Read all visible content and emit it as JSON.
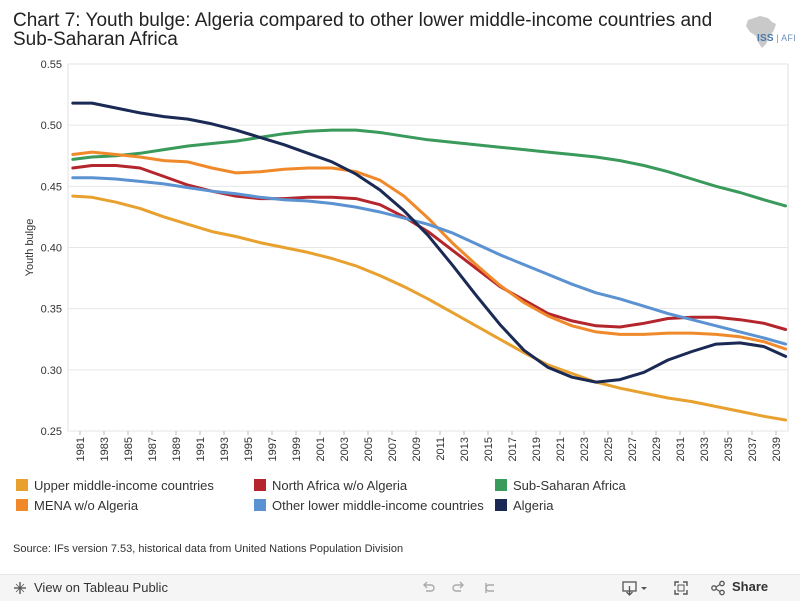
{
  "title": "Chart 7: Youth bulge: Algeria compared to other lower middle-income countries and Sub-Saharan Africa",
  "logo": {
    "text": "ISS",
    "text2": "AFI"
  },
  "source": "Source: IFs version 7.53, historical data from United Nations Population Division",
  "footer": {
    "view_label": "View on Tableau Public",
    "share_label": "Share"
  },
  "colors": {
    "upper": "#e8a12f",
    "north": "#b5262c",
    "ssa": "#3a9a5b",
    "mena": "#f0892a",
    "lower": "#5b92d1",
    "algeria": "#1a2a55"
  },
  "chart_data": {
    "type": "line",
    "title": "Chart 7: Youth bulge: Algeria compared to other lower middle-income countries and Sub-Saharan Africa",
    "xlabel": "",
    "ylabel": "Youth bulge",
    "xlim": [
      1980,
      2040
    ],
    "ylim": [
      0.25,
      0.55
    ],
    "yticks": [
      "0.25",
      "0.30",
      "0.35",
      "0.40",
      "0.45",
      "0.50",
      "0.55"
    ],
    "xticks": [
      "1981",
      "1983",
      "1985",
      "1987",
      "1989",
      "1991",
      "1993",
      "1995",
      "1997",
      "1999",
      "2001",
      "2003",
      "2005",
      "2007",
      "2009",
      "2011",
      "2013",
      "2015",
      "2017",
      "2019",
      "2021",
      "2023",
      "2025",
      "2027",
      "2029",
      "2031",
      "2033",
      "2035",
      "2037",
      "2039"
    ],
    "grid": true,
    "legend_position": "bottom",
    "series": [
      {
        "name": "Upper middle-income countries",
        "color": "#e8a12f",
        "x": [
          1980,
          1982,
          1984,
          1986,
          1988,
          1990,
          1992,
          1994,
          1996,
          1998,
          2000,
          2002,
          2004,
          2006,
          2008,
          2010,
          2012,
          2014,
          2016,
          2018,
          2020,
          2022,
          2024,
          2026,
          2028,
          2030,
          2032,
          2034,
          2036,
          2038,
          2040
        ],
        "values": [
          0.442,
          0.441,
          0.437,
          0.432,
          0.425,
          0.419,
          0.413,
          0.409,
          0.404,
          0.4,
          0.396,
          0.391,
          0.385,
          0.377,
          0.368,
          0.358,
          0.347,
          0.336,
          0.325,
          0.314,
          0.304,
          0.297,
          0.29,
          0.285,
          0.281,
          0.277,
          0.274,
          0.27,
          0.266,
          0.262,
          0.259
        ]
      },
      {
        "name": "North Africa w/o Algeria",
        "color": "#b5262c",
        "x": [
          1980,
          1982,
          1984,
          1986,
          1988,
          1990,
          1992,
          1994,
          1996,
          1998,
          2000,
          2002,
          2004,
          2006,
          2008,
          2010,
          2012,
          2014,
          2016,
          2018,
          2020,
          2022,
          2024,
          2026,
          2028,
          2030,
          2032,
          2034,
          2036,
          2038,
          2040
        ],
        "values": [
          0.465,
          0.467,
          0.467,
          0.465,
          0.458,
          0.451,
          0.446,
          0.442,
          0.44,
          0.44,
          0.441,
          0.441,
          0.44,
          0.435,
          0.425,
          0.413,
          0.398,
          0.383,
          0.368,
          0.357,
          0.346,
          0.34,
          0.336,
          0.335,
          0.338,
          0.342,
          0.343,
          0.343,
          0.341,
          0.338,
          0.333
        ]
      },
      {
        "name": "Sub-Saharan Africa",
        "color": "#3a9a5b",
        "x": [
          1980,
          1982,
          1984,
          1986,
          1988,
          1990,
          1992,
          1994,
          1996,
          1998,
          2000,
          2002,
          2004,
          2006,
          2008,
          2010,
          2012,
          2014,
          2016,
          2018,
          2020,
          2022,
          2024,
          2026,
          2028,
          2030,
          2032,
          2034,
          2036,
          2038,
          2040
        ],
        "values": [
          0.472,
          0.474,
          0.475,
          0.477,
          0.48,
          0.483,
          0.485,
          0.487,
          0.49,
          0.493,
          0.495,
          0.496,
          0.496,
          0.494,
          0.491,
          0.488,
          0.486,
          0.484,
          0.482,
          0.48,
          0.478,
          0.476,
          0.474,
          0.471,
          0.467,
          0.462,
          0.456,
          0.45,
          0.445,
          0.439,
          0.434
        ]
      },
      {
        "name": "MENA w/o Algeria",
        "color": "#f0892a",
        "x": [
          1980,
          1982,
          1984,
          1986,
          1988,
          1990,
          1992,
          1994,
          1996,
          1998,
          2000,
          2002,
          2004,
          2006,
          2008,
          2010,
          2012,
          2014,
          2016,
          2018,
          2020,
          2022,
          2024,
          2026,
          2028,
          2030,
          2032,
          2034,
          2036,
          2038,
          2040
        ],
        "values": [
          0.476,
          0.478,
          0.476,
          0.474,
          0.471,
          0.47,
          0.465,
          0.461,
          0.462,
          0.464,
          0.465,
          0.465,
          0.462,
          0.455,
          0.442,
          0.424,
          0.404,
          0.386,
          0.369,
          0.355,
          0.344,
          0.336,
          0.331,
          0.329,
          0.329,
          0.33,
          0.33,
          0.329,
          0.327,
          0.323,
          0.317
        ]
      },
      {
        "name": "Other lower middle-income countries",
        "color": "#5b92d1",
        "x": [
          1980,
          1982,
          1984,
          1986,
          1988,
          1990,
          1992,
          1994,
          1996,
          1998,
          2000,
          2002,
          2004,
          2006,
          2008,
          2010,
          2012,
          2014,
          2016,
          2018,
          2020,
          2022,
          2024,
          2026,
          2028,
          2030,
          2032,
          2034,
          2036,
          2038,
          2040
        ],
        "values": [
          0.457,
          0.457,
          0.456,
          0.454,
          0.452,
          0.449,
          0.446,
          0.444,
          0.441,
          0.439,
          0.438,
          0.436,
          0.433,
          0.429,
          0.424,
          0.419,
          0.412,
          0.403,
          0.394,
          0.386,
          0.378,
          0.37,
          0.363,
          0.358,
          0.352,
          0.346,
          0.341,
          0.336,
          0.331,
          0.326,
          0.321
        ]
      },
      {
        "name": "Algeria",
        "color": "#1a2a55",
        "x": [
          1980,
          1982,
          1984,
          1986,
          1988,
          1990,
          1992,
          1994,
          1996,
          1998,
          2000,
          2002,
          2004,
          2006,
          2008,
          2010,
          2012,
          2014,
          2016,
          2018,
          2020,
          2022,
          2024,
          2026,
          2028,
          2030,
          2032,
          2034,
          2036,
          2038,
          2040
        ],
        "values": [
          0.518,
          0.518,
          0.514,
          0.51,
          0.507,
          0.505,
          0.501,
          0.496,
          0.49,
          0.484,
          0.477,
          0.47,
          0.46,
          0.447,
          0.43,
          0.41,
          0.386,
          0.361,
          0.337,
          0.316,
          0.302,
          0.294,
          0.29,
          0.292,
          0.298,
          0.308,
          0.315,
          0.321,
          0.322,
          0.319,
          0.311
        ]
      }
    ]
  }
}
